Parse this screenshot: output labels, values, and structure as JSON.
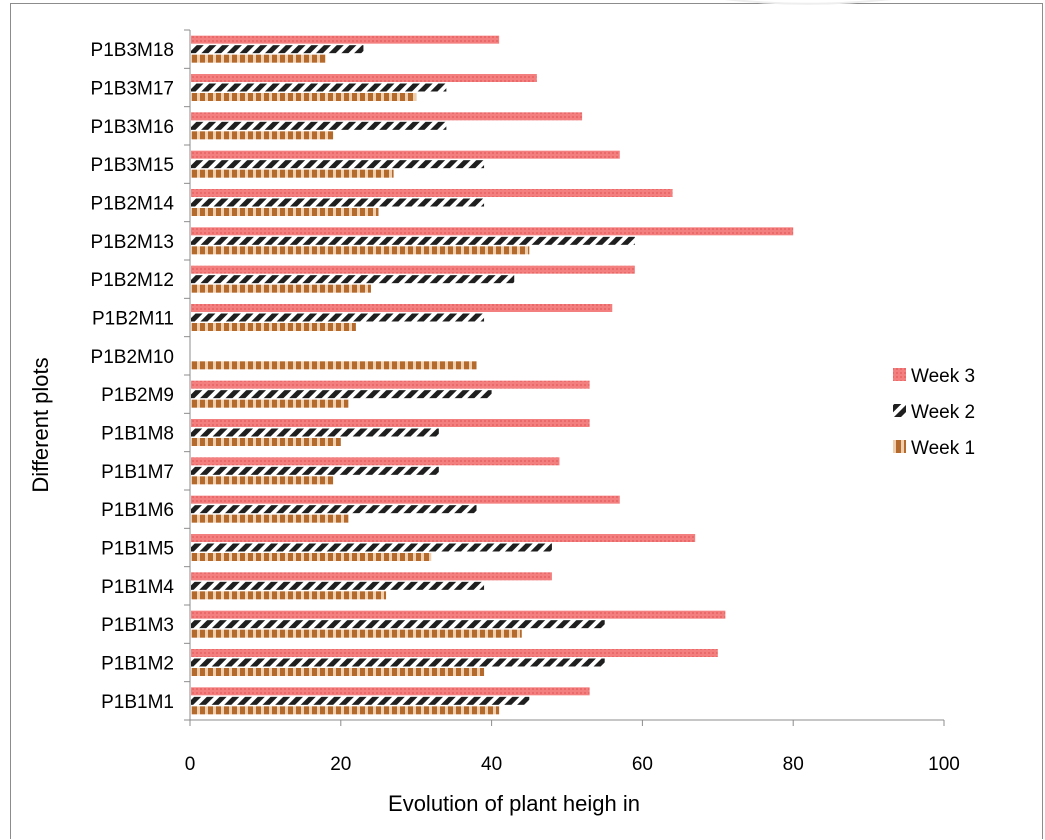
{
  "chart_data": {
    "type": "bar",
    "orientation": "horizontal",
    "categories": [
      "P1B1M1",
      "P1B1M2",
      "P1B1M3",
      "P1B1M4",
      "P1B1M5",
      "P1B1M6",
      "P1B1M7",
      "P1B1M8",
      "P1B2M9",
      "P1B2M10",
      "P1B2M11",
      "P1B2M12",
      "P1B2M13",
      "P1B2M14",
      "P1B3M15",
      "P1B3M16",
      "P1B3M17",
      "P1B3M18"
    ],
    "series": [
      {
        "name": "Week 1",
        "values": [
          41,
          39,
          44,
          26,
          32,
          21,
          19,
          20,
          21,
          38,
          22,
          24,
          45,
          25,
          27,
          19,
          30,
          18
        ]
      },
      {
        "name": "Week 2",
        "values": [
          45,
          55,
          55,
          39,
          48,
          38,
          33,
          33,
          40,
          0,
          39,
          43,
          59,
          39,
          39,
          34,
          34,
          23
        ]
      },
      {
        "name": "Week 3",
        "values": [
          53,
          70,
          71,
          48,
          67,
          57,
          49,
          53,
          53,
          0,
          56,
          59,
          80,
          64,
          57,
          52,
          46,
          41
        ]
      }
    ],
    "xlabel": "Evolution of plant heigh in",
    "ylabel": "Different plots",
    "xlim": [
      0,
      100
    ],
    "xticks": [
      "0",
      "20",
      "40",
      "60",
      "80",
      "100"
    ],
    "grid": false,
    "legend_position": "right",
    "colors": {
      "Week 3": "#f47f7f",
      "Week 2": "#1f1f1f",
      "Week 1": "#c79063",
      "axis": "#8c8c8c"
    }
  }
}
